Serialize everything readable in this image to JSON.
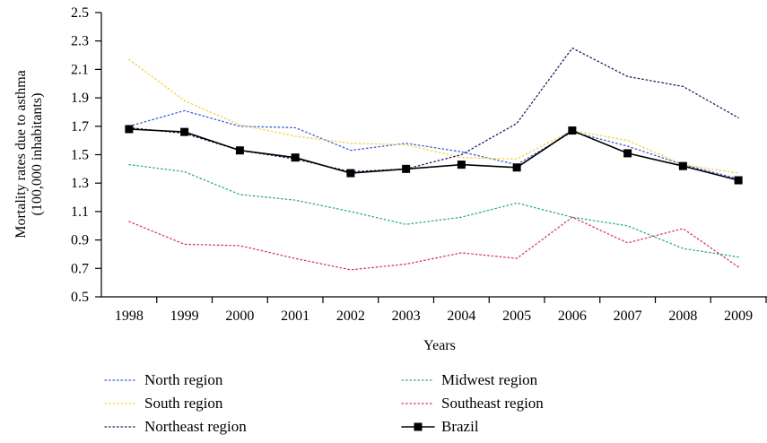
{
  "chart_data": {
    "type": "line",
    "title": "",
    "xlabel": "Years",
    "ylabel": [
      "Mortality rates due to asthma",
      "(100,000 inhabitants)"
    ],
    "x": [
      1998,
      1999,
      2000,
      2001,
      2002,
      2003,
      2004,
      2005,
      2006,
      2007,
      2008,
      2009
    ],
    "x_tick_labels": [
      "1998",
      "1999",
      "2000",
      "2001",
      "2002",
      "2003",
      "2004",
      "2005",
      "2006",
      "2007",
      "2008",
      "2009"
    ],
    "ylim": [
      0.5,
      2.5
    ],
    "y_ticks": [
      0.5,
      0.7,
      0.9,
      1.1,
      1.3,
      1.5,
      1.7,
      1.9,
      2.1,
      2.3,
      2.5
    ],
    "y_tick_labels": [
      "0.5",
      "0.7",
      "0.9",
      "1.1",
      "1.3",
      "1.5",
      "1.7",
      "1.9",
      "2.1",
      "2.3",
      "2.5"
    ],
    "grid": false,
    "legend_position": "bottom",
    "series": [
      {
        "name": "North region",
        "color": "#3b5bd9",
        "style": "dotted",
        "values": [
          1.7,
          1.81,
          1.7,
          1.69,
          1.53,
          1.58,
          1.52,
          1.43,
          1.66,
          1.56,
          1.43,
          1.33
        ]
      },
      {
        "name": "South region",
        "color": "#f2d33c",
        "style": "dotted",
        "values": [
          2.17,
          1.88,
          1.71,
          1.63,
          1.58,
          1.57,
          1.48,
          1.47,
          1.67,
          1.6,
          1.43,
          1.37
        ]
      },
      {
        "name": "Northeast region",
        "color": "#1a1a66",
        "style": "dotted",
        "values": [
          1.69,
          1.65,
          1.53,
          1.47,
          1.38,
          1.4,
          1.5,
          1.72,
          2.25,
          2.05,
          1.98,
          1.76
        ]
      },
      {
        "name": "Midwest region",
        "color": "#2aa89a",
        "style": "dotted",
        "values": [
          1.43,
          1.38,
          1.22,
          1.18,
          1.1,
          1.01,
          1.06,
          1.16,
          1.06,
          1.0,
          0.84,
          0.78
        ]
      },
      {
        "name": "Southeast region",
        "color": "#d6336c",
        "style": "dotted",
        "values": [
          1.03,
          0.87,
          0.86,
          0.77,
          0.69,
          0.73,
          0.81,
          0.77,
          1.06,
          0.88,
          0.98,
          0.71
        ]
      },
      {
        "name": "Brazil",
        "color": "#000000",
        "style": "solid-square-markers",
        "values": [
          1.68,
          1.66,
          1.53,
          1.48,
          1.37,
          1.4,
          1.43,
          1.41,
          1.67,
          1.51,
          1.42,
          1.32
        ]
      }
    ]
  }
}
